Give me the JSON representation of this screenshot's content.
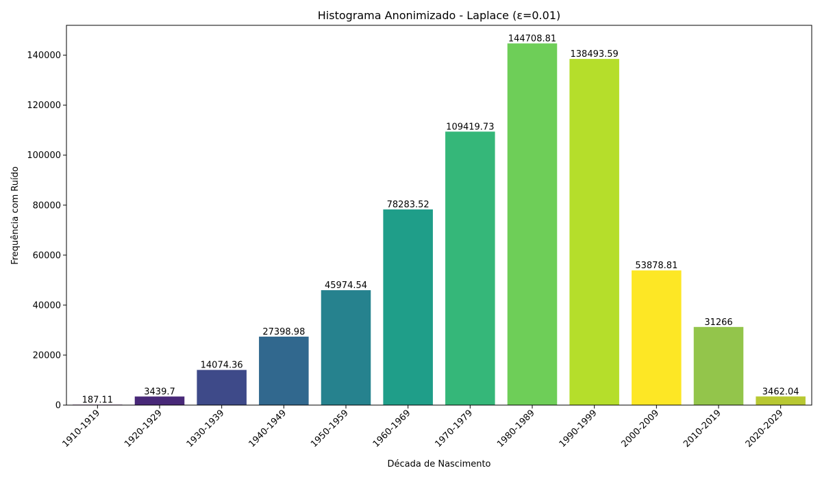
{
  "chart_data": {
    "type": "bar",
    "title": "Histograma Anonimizado - Laplace (ε=0.01)",
    "xlabel": "Década de Nascimento",
    "ylabel": "Frequência com Ruído",
    "categories": [
      "1910-1919",
      "1920-1929",
      "1930-1939",
      "1940-1949",
      "1950-1959",
      "1960-1969",
      "1970-1979",
      "1980-1989",
      "1990-1999",
      "2000-2009",
      "2010-2019",
      "2020-2029"
    ],
    "values": [
      187.11,
      3439.7,
      14074.36,
      27398.98,
      45974.54,
      78283.52,
      109419.73,
      144708.81,
      138493.59,
      53878.81,
      31266,
      3462.04
    ],
    "value_labels": [
      "187.11",
      "3439.7",
      "14074.36",
      "27398.98",
      "45974.54",
      "78283.52",
      "109419.73",
      "144708.81",
      "138493.59",
      "53878.81",
      "31266",
      "3462.04"
    ],
    "colors": [
      "#440154",
      "#482878",
      "#3e4a89",
      "#31688e",
      "#26828e",
      "#1f9e89",
      "#35b779",
      "#6ece58",
      "#b5de2b",
      "#fde725",
      "#93c54b",
      "#b8c832"
    ],
    "y_ticks": [
      0,
      20000,
      40000,
      60000,
      80000,
      100000,
      120000,
      140000
    ],
    "ylim": [
      0,
      151944
    ],
    "grid": false,
    "legend": "none"
  }
}
